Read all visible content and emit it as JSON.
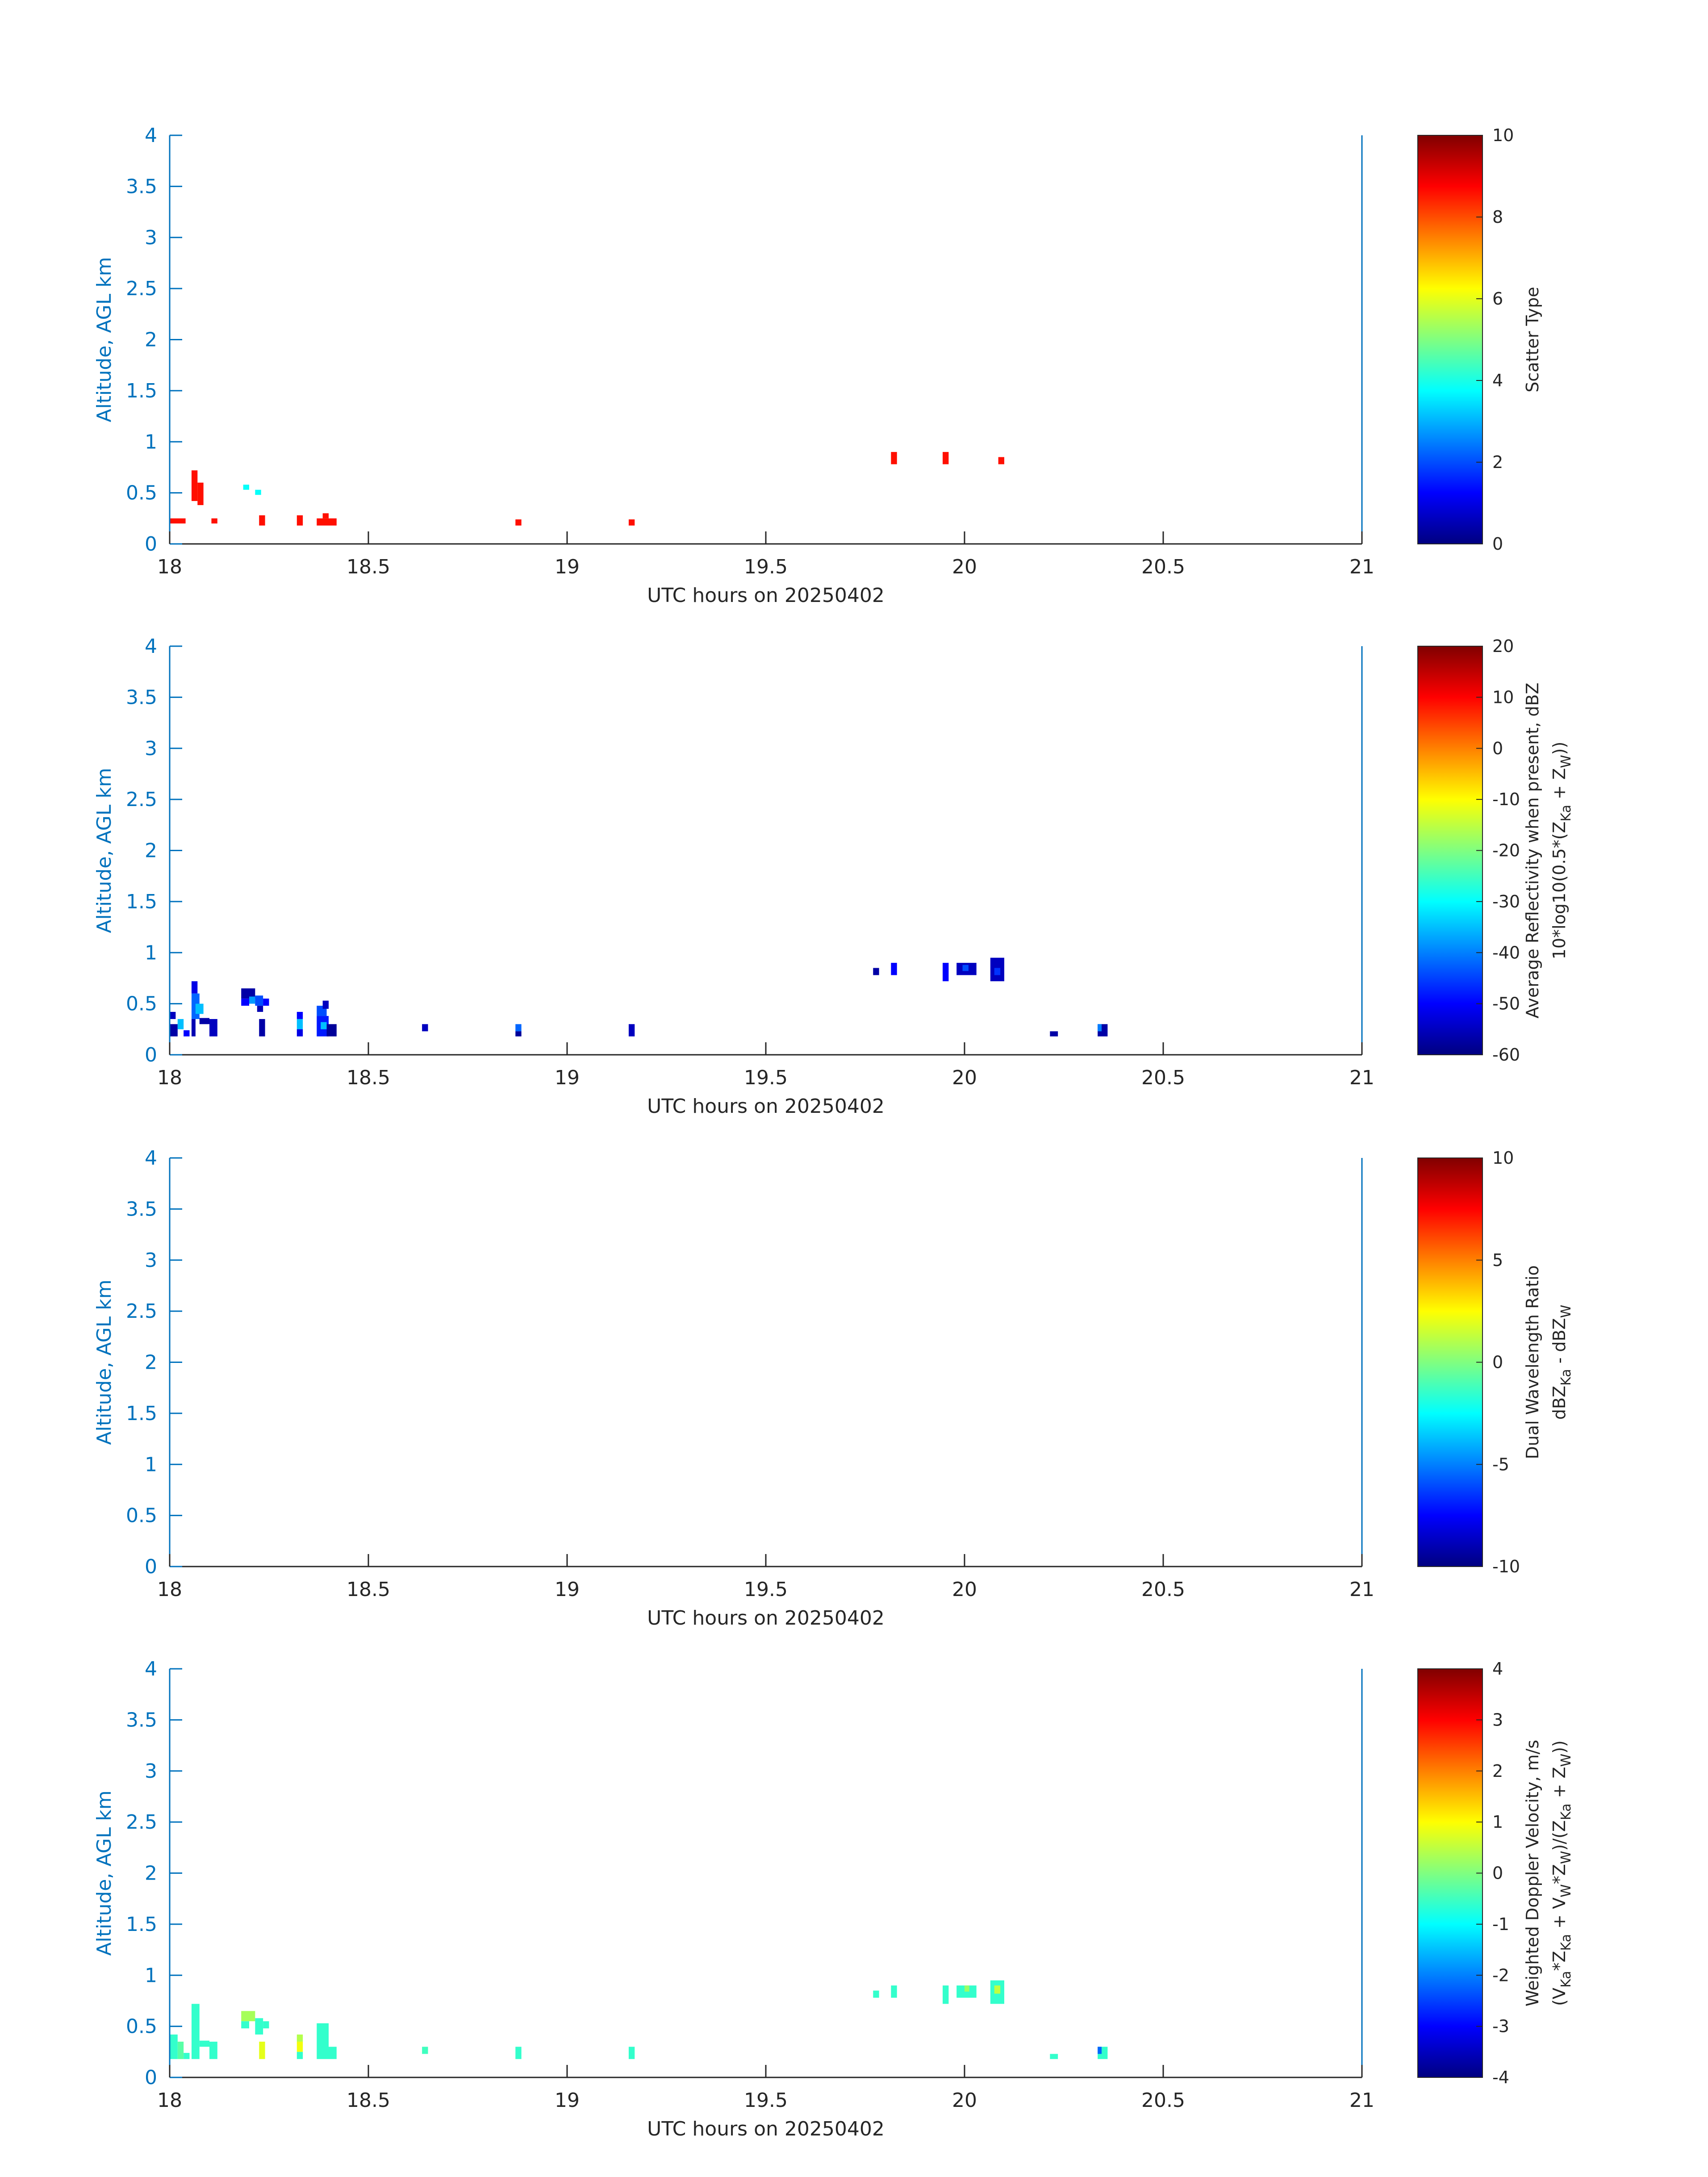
{
  "figure": {
    "date_label": "20250402"
  },
  "chart_data": [
    {
      "type": "heatmap",
      "title": "",
      "xlabel": "UTC hours on 20250402",
      "ylabel": "Altitude, AGL km",
      "xlim": [
        18,
        21
      ],
      "ylim": [
        0,
        4
      ],
      "xticks": [
        "18",
        "18.5",
        "19",
        "19.5",
        "20",
        "20.5",
        "21"
      ],
      "yticks": [
        "0",
        "0.5",
        "1",
        "1.5",
        "2",
        "2.5",
        "3",
        "3.5",
        "4"
      ],
      "colorbar": {
        "label": "Scatter Type",
        "label2": "",
        "clim": [
          0,
          10
        ],
        "ticks": [
          0,
          2,
          4,
          6,
          8,
          10
        ],
        "ticklabels": [
          "0",
          "2",
          "4",
          "6",
          "8",
          "10"
        ]
      },
      "cells": [
        {
          "x0": 18.0,
          "x1": 18.04,
          "y0": 0.2,
          "y1": 0.25,
          "v": 8.6
        },
        {
          "x0": 18.055,
          "x1": 18.07,
          "y0": 0.42,
          "y1": 0.72,
          "v": 8.6
        },
        {
          "x0": 18.07,
          "x1": 18.085,
          "y0": 0.38,
          "y1": 0.6,
          "v": 8.6
        },
        {
          "x0": 18.105,
          "x1": 18.12,
          "y0": 0.2,
          "y1": 0.25,
          "v": 8.6
        },
        {
          "x0": 18.185,
          "x1": 18.2,
          "y0": 0.53,
          "y1": 0.58,
          "v": 3.8
        },
        {
          "x0": 18.215,
          "x1": 18.23,
          "y0": 0.48,
          "y1": 0.53,
          "v": 3.8
        },
        {
          "x0": 18.225,
          "x1": 18.24,
          "y0": 0.18,
          "y1": 0.28,
          "v": 8.6
        },
        {
          "x0": 18.32,
          "x1": 18.335,
          "y0": 0.18,
          "y1": 0.28,
          "v": 8.6
        },
        {
          "x0": 18.37,
          "x1": 18.42,
          "y0": 0.18,
          "y1": 0.25,
          "v": 8.6
        },
        {
          "x0": 18.385,
          "x1": 18.4,
          "y0": 0.25,
          "y1": 0.3,
          "v": 8.6
        },
        {
          "x0": 18.87,
          "x1": 18.885,
          "y0": 0.18,
          "y1": 0.24,
          "v": 8.6
        },
        {
          "x0": 19.155,
          "x1": 19.17,
          "y0": 0.18,
          "y1": 0.24,
          "v": 8.6
        },
        {
          "x0": 19.815,
          "x1": 19.83,
          "y0": 0.78,
          "y1": 0.9,
          "v": 8.6
        },
        {
          "x0": 19.945,
          "x1": 19.96,
          "y0": 0.78,
          "y1": 0.9,
          "v": 8.6
        },
        {
          "x0": 20.085,
          "x1": 20.1,
          "y0": 0.78,
          "y1": 0.85,
          "v": 8.6
        }
      ]
    },
    {
      "type": "heatmap",
      "title": "",
      "xlabel": "UTC hours on 20250402",
      "ylabel": "Altitude, AGL km",
      "xlim": [
        18,
        21
      ],
      "ylim": [
        0,
        4
      ],
      "xticks": [
        "18",
        "18.5",
        "19",
        "19.5",
        "20",
        "20.5",
        "21"
      ],
      "yticks": [
        "0",
        "0.5",
        "1",
        "1.5",
        "2",
        "2.5",
        "3",
        "3.5",
        "4"
      ],
      "colorbar": {
        "label": "Average Reflectivity when present, dBZ",
        "label2": "10*log10(0.5*(Z_Ka + Z_W))",
        "clim": [
          -60,
          20
        ],
        "ticks": [
          -60,
          -50,
          -40,
          -30,
          -20,
          -10,
          0,
          10,
          20
        ],
        "ticklabels": [
          "-60",
          "-50",
          "-40",
          "-30",
          "-20",
          "-10",
          "0",
          "10",
          "20"
        ]
      },
      "cells": [
        {
          "x0": 18.0,
          "x1": 18.02,
          "y0": 0.18,
          "y1": 0.3,
          "v": -57
        },
        {
          "x0": 18.0,
          "x1": 18.015,
          "y0": 0.35,
          "y1": 0.42,
          "v": -55
        },
        {
          "x0": 18.02,
          "x1": 18.035,
          "y0": 0.25,
          "y1": 0.35,
          "v": -35
        },
        {
          "x0": 18.035,
          "x1": 18.05,
          "y0": 0.18,
          "y1": 0.24,
          "v": -50
        },
        {
          "x0": 18.055,
          "x1": 18.07,
          "y0": 0.6,
          "y1": 0.72,
          "v": -52
        },
        {
          "x0": 18.055,
          "x1": 18.075,
          "y0": 0.35,
          "y1": 0.6,
          "v": -42
        },
        {
          "x0": 18.065,
          "x1": 18.085,
          "y0": 0.4,
          "y1": 0.5,
          "v": -35
        },
        {
          "x0": 18.055,
          "x1": 18.065,
          "y0": 0.18,
          "y1": 0.35,
          "v": -56
        },
        {
          "x0": 18.075,
          "x1": 18.1,
          "y0": 0.3,
          "y1": 0.36,
          "v": -57
        },
        {
          "x0": 18.1,
          "x1": 18.12,
          "y0": 0.18,
          "y1": 0.35,
          "v": -55
        },
        {
          "x0": 18.18,
          "x1": 18.215,
          "y0": 0.55,
          "y1": 0.65,
          "v": -57
        },
        {
          "x0": 18.18,
          "x1": 18.2,
          "y0": 0.48,
          "y1": 0.55,
          "v": -50
        },
        {
          "x0": 18.2,
          "x1": 18.215,
          "y0": 0.5,
          "y1": 0.57,
          "v": -38
        },
        {
          "x0": 18.215,
          "x1": 18.235,
          "y0": 0.48,
          "y1": 0.58,
          "v": -44
        },
        {
          "x0": 18.235,
          "x1": 18.25,
          "y0": 0.48,
          "y1": 0.55,
          "v": -50
        },
        {
          "x0": 18.22,
          "x1": 18.235,
          "y0": 0.42,
          "y1": 0.48,
          "v": -56
        },
        {
          "x0": 18.225,
          "x1": 18.24,
          "y0": 0.18,
          "y1": 0.35,
          "v": -57
        },
        {
          "x0": 18.32,
          "x1": 18.335,
          "y0": 0.35,
          "y1": 0.42,
          "v": -50
        },
        {
          "x0": 18.32,
          "x1": 18.335,
          "y0": 0.25,
          "y1": 0.35,
          "v": -35
        },
        {
          "x0": 18.32,
          "x1": 18.335,
          "y0": 0.18,
          "y1": 0.25,
          "v": -52
        },
        {
          "x0": 18.37,
          "x1": 18.395,
          "y0": 0.38,
          "y1": 0.48,
          "v": -44
        },
        {
          "x0": 18.385,
          "x1": 18.4,
          "y0": 0.45,
          "y1": 0.53,
          "v": -55
        },
        {
          "x0": 18.37,
          "x1": 18.4,
          "y0": 0.18,
          "y1": 0.38,
          "v": -48
        },
        {
          "x0": 18.38,
          "x1": 18.395,
          "y0": 0.25,
          "y1": 0.32,
          "v": -35
        },
        {
          "x0": 18.395,
          "x1": 18.42,
          "y0": 0.18,
          "y1": 0.3,
          "v": -58
        },
        {
          "x0": 18.635,
          "x1": 18.65,
          "y0": 0.23,
          "y1": 0.3,
          "v": -55
        },
        {
          "x0": 18.87,
          "x1": 18.885,
          "y0": 0.23,
          "y1": 0.3,
          "v": -42
        },
        {
          "x0": 18.87,
          "x1": 18.885,
          "y0": 0.18,
          "y1": 0.23,
          "v": -58
        },
        {
          "x0": 19.155,
          "x1": 19.17,
          "y0": 0.18,
          "y1": 0.3,
          "v": -55
        },
        {
          "x0": 19.77,
          "x1": 19.785,
          "y0": 0.78,
          "y1": 0.85,
          "v": -57
        },
        {
          "x0": 19.815,
          "x1": 19.83,
          "y0": 0.78,
          "y1": 0.9,
          "v": -50
        },
        {
          "x0": 19.945,
          "x1": 19.96,
          "y0": 0.72,
          "y1": 0.9,
          "v": -50
        },
        {
          "x0": 19.98,
          "x1": 20.03,
          "y0": 0.78,
          "y1": 0.9,
          "v": -55
        },
        {
          "x0": 19.995,
          "x1": 20.01,
          "y0": 0.82,
          "y1": 0.88,
          "v": -44
        },
        {
          "x0": 20.065,
          "x1": 20.1,
          "y0": 0.72,
          "y1": 0.95,
          "v": -55
        },
        {
          "x0": 20.075,
          "x1": 20.09,
          "y0": 0.78,
          "y1": 0.85,
          "v": -46
        },
        {
          "x0": 20.215,
          "x1": 20.235,
          "y0": 0.18,
          "y1": 0.23,
          "v": -57
        },
        {
          "x0": 20.335,
          "x1": 20.36,
          "y0": 0.18,
          "y1": 0.3,
          "v": -57
        },
        {
          "x0": 20.335,
          "x1": 20.345,
          "y0": 0.23,
          "y1": 0.3,
          "v": -40
        }
      ]
    },
    {
      "type": "heatmap",
      "title": "",
      "xlabel": "UTC hours on 20250402",
      "ylabel": "Altitude, AGL km",
      "xlim": [
        18,
        21
      ],
      "ylim": [
        0,
        4
      ],
      "xticks": [
        "18",
        "18.5",
        "19",
        "19.5",
        "20",
        "20.5",
        "21"
      ],
      "yticks": [
        "0",
        "0.5",
        "1",
        "1.5",
        "2",
        "2.5",
        "3",
        "3.5",
        "4"
      ],
      "colorbar": {
        "label": "Dual Wavelength Ratio",
        "label2": "dBZ_Ka - dBZ_W",
        "clim": [
          -10,
          10
        ],
        "ticks": [
          -10,
          -5,
          0,
          5,
          10
        ],
        "ticklabels": [
          "-10",
          "-5",
          "0",
          "5",
          "10"
        ]
      },
      "cells": []
    },
    {
      "type": "heatmap",
      "title": "",
      "xlabel": "UTC hours on 20250402",
      "ylabel": "Altitude, AGL km",
      "xlim": [
        18,
        21
      ],
      "ylim": [
        0,
        4
      ],
      "xticks": [
        "18",
        "18.5",
        "19",
        "19.5",
        "20",
        "20.5",
        "21"
      ],
      "yticks": [
        "0",
        "0.5",
        "1",
        "1.5",
        "2",
        "2.5",
        "3",
        "3.5",
        "4"
      ],
      "colorbar": {
        "label": "Weighted Doppler Velocity, m/s",
        "label2": "(V_Ka*Z_Ka + V_W*Z_W)/(Z_Ka + Z_W))",
        "clim": [
          -4,
          4
        ],
        "ticks": [
          -4,
          -3,
          -2,
          -1,
          0,
          1,
          2,
          3,
          4
        ],
        "ticklabels": [
          "-4",
          "-3",
          "-2",
          "-1",
          "0",
          "1",
          "2",
          "3",
          "4"
        ]
      },
      "cells": [
        {
          "x0": 18.0,
          "x1": 18.02,
          "y0": 0.18,
          "y1": 0.42,
          "v": -0.6
        },
        {
          "x0": 18.02,
          "x1": 18.035,
          "y0": 0.18,
          "y1": 0.35,
          "v": -0.3
        },
        {
          "x0": 18.035,
          "x1": 18.05,
          "y0": 0.18,
          "y1": 0.24,
          "v": -0.6
        },
        {
          "x0": 18.055,
          "x1": 18.075,
          "y0": 0.18,
          "y1": 0.72,
          "v": -0.6
        },
        {
          "x0": 18.075,
          "x1": 18.1,
          "y0": 0.3,
          "y1": 0.36,
          "v": -0.6
        },
        {
          "x0": 18.1,
          "x1": 18.12,
          "y0": 0.18,
          "y1": 0.35,
          "v": -0.6
        },
        {
          "x0": 18.18,
          "x1": 18.215,
          "y0": 0.55,
          "y1": 0.65,
          "v": 0.3
        },
        {
          "x0": 18.18,
          "x1": 18.2,
          "y0": 0.48,
          "y1": 0.55,
          "v": -0.6
        },
        {
          "x0": 18.215,
          "x1": 18.235,
          "y0": 0.42,
          "y1": 0.58,
          "v": -0.6
        },
        {
          "x0": 18.235,
          "x1": 18.25,
          "y0": 0.48,
          "y1": 0.55,
          "v": -0.6
        },
        {
          "x0": 18.225,
          "x1": 18.24,
          "y0": 0.18,
          "y1": 0.35,
          "v": 0.8
        },
        {
          "x0": 18.32,
          "x1": 18.335,
          "y0": 0.35,
          "y1": 0.42,
          "v": 0.4
        },
        {
          "x0": 18.32,
          "x1": 18.335,
          "y0": 0.25,
          "y1": 0.35,
          "v": 0.9
        },
        {
          "x0": 18.32,
          "x1": 18.335,
          "y0": 0.18,
          "y1": 0.25,
          "v": -0.6
        },
        {
          "x0": 18.37,
          "x1": 18.4,
          "y0": 0.18,
          "y1": 0.53,
          "v": -0.6
        },
        {
          "x0": 18.4,
          "x1": 18.42,
          "y0": 0.18,
          "y1": 0.3,
          "v": -0.6
        },
        {
          "x0": 18.635,
          "x1": 18.65,
          "y0": 0.23,
          "y1": 0.3,
          "v": -0.5
        },
        {
          "x0": 18.87,
          "x1": 18.885,
          "y0": 0.18,
          "y1": 0.3,
          "v": -0.6
        },
        {
          "x0": 19.155,
          "x1": 19.17,
          "y0": 0.18,
          "y1": 0.3,
          "v": -0.6
        },
        {
          "x0": 19.77,
          "x1": 19.785,
          "y0": 0.78,
          "y1": 0.85,
          "v": -0.6
        },
        {
          "x0": 19.815,
          "x1": 19.83,
          "y0": 0.78,
          "y1": 0.9,
          "v": -0.6
        },
        {
          "x0": 19.945,
          "x1": 19.96,
          "y0": 0.72,
          "y1": 0.9,
          "v": -0.6
        },
        {
          "x0": 19.98,
          "x1": 20.03,
          "y0": 0.78,
          "y1": 0.9,
          "v": -0.6
        },
        {
          "x0": 20.0,
          "x1": 20.012,
          "y0": 0.84,
          "y1": 0.9,
          "v": 0.2
        },
        {
          "x0": 20.065,
          "x1": 20.1,
          "y0": 0.72,
          "y1": 0.95,
          "v": -0.6
        },
        {
          "x0": 20.075,
          "x1": 20.09,
          "y0": 0.82,
          "y1": 0.9,
          "v": 0.5
        },
        {
          "x0": 20.215,
          "x1": 20.235,
          "y0": 0.18,
          "y1": 0.23,
          "v": -0.6
        },
        {
          "x0": 20.335,
          "x1": 20.36,
          "y0": 0.18,
          "y1": 0.3,
          "v": -0.6
        },
        {
          "x0": 20.335,
          "x1": 20.345,
          "y0": 0.23,
          "y1": 0.3,
          "v": -2.2
        }
      ]
    }
  ]
}
